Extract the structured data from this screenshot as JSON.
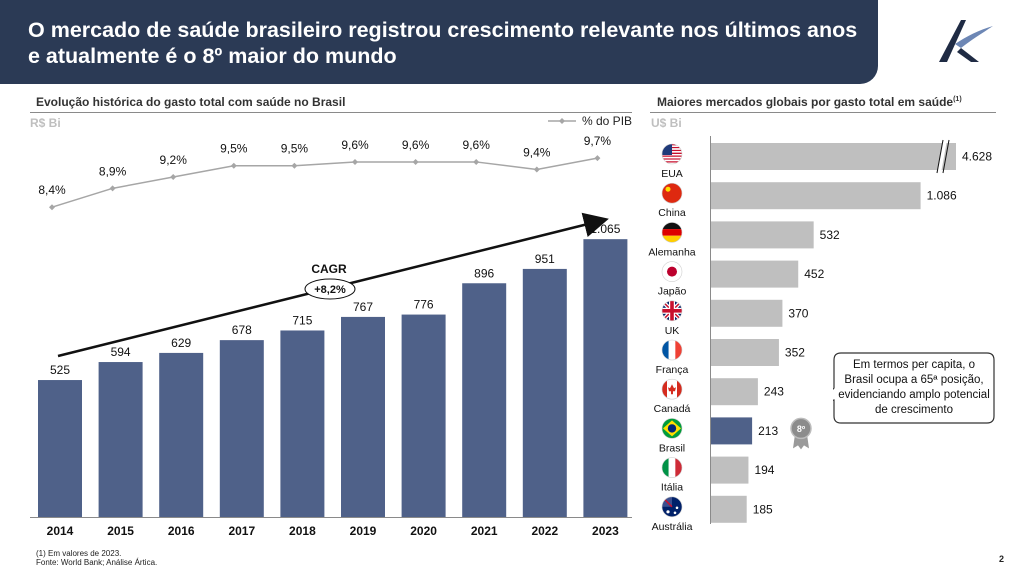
{
  "header": {
    "title": "O mercado de saúde brasileiro registrou crescimento relevante nos últimos anos e atualmente é o 8º maior do mundo"
  },
  "left_panel": {
    "title": "Evolução histórica do gasto total com saúde no Brasil",
    "unit": "R$ Bi",
    "legend": "% do PIB",
    "cagr_label": "CAGR",
    "cagr_value": "+8,2%"
  },
  "right_panel": {
    "title": "Maiores mercados globais por gasto total em saúde",
    "title_sup": "(1)",
    "unit": "U$ Bi",
    "rank_badge": "8º",
    "callout": "Em termos per capita, o Brasil ocupa a 65ª posição, evidenciando amplo potencial de crescimento"
  },
  "footer": {
    "note": "(1) Em valores de 2023.",
    "source": "Fonte: World Bank; Análise Ártica.",
    "page": "2"
  },
  "colors": {
    "header_bg": "#2b3a55",
    "bar_main": "#4f6189",
    "bar_grey": "#bfbfbf",
    "line_grey": "#a6a6a6"
  },
  "chart_data": [
    {
      "type": "bar",
      "categories": [
        "2014",
        "2015",
        "2016",
        "2017",
        "2018",
        "2019",
        "2020",
        "2021",
        "2022",
        "2023"
      ],
      "values": [
        525,
        594,
        629,
        678,
        715,
        767,
        776,
        896,
        951,
        1065
      ],
      "value_labels": [
        "525",
        "594",
        "629",
        "678",
        "715",
        "767",
        "776",
        "896",
        "951",
        "1.065"
      ],
      "ylabel": "R$ Bi",
      "ylim": [
        0,
        1150
      ],
      "grid": false,
      "line_series": {
        "name": "% do PIB",
        "values": [
          8.4,
          8.9,
          9.2,
          9.5,
          9.5,
          9.6,
          9.6,
          9.6,
          9.4,
          9.7
        ],
        "labels": [
          "8,4%",
          "8,9%",
          "9,2%",
          "9,5%",
          "9,5%",
          "9,6%",
          "9,6%",
          "9,6%",
          "9,4%",
          "9,7%"
        ],
        "ylim": [
          7.0,
          10.5
        ]
      },
      "legend_position": "top-right"
    },
    {
      "type": "bar",
      "orientation": "horizontal",
      "categories": [
        "EUA",
        "China",
        "Alemanha",
        "Japão",
        "UK",
        "França",
        "Canadá",
        "Brasil",
        "Itália",
        "Austrália"
      ],
      "values": [
        4628,
        1086,
        532,
        452,
        370,
        352,
        243,
        213,
        194,
        185
      ],
      "value_labels": [
        "4.628",
        "1.086",
        "532",
        "452",
        "370",
        "352",
        "243",
        "213",
        "194",
        "185"
      ],
      "highlight": "Brasil",
      "axis_break": "EUA",
      "xlabel": "U$ Bi",
      "grid": false
    }
  ]
}
